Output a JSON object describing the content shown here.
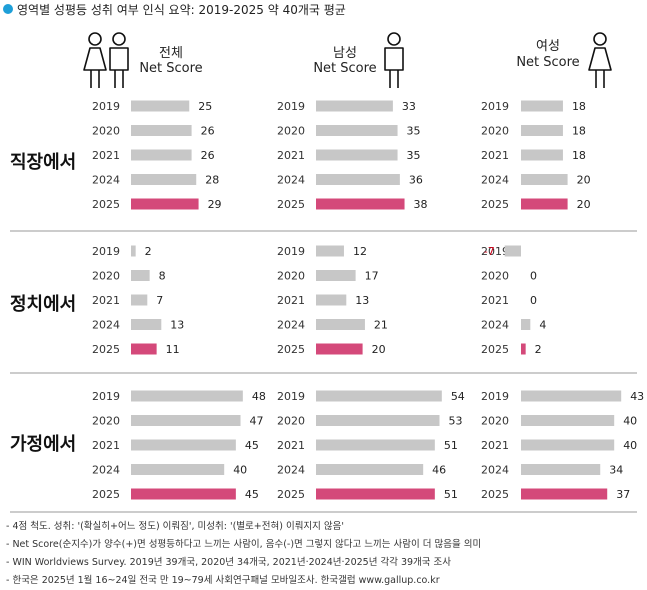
{
  "title": "영역별 성평등 성취 여부 인식 요약: 2019-2025 약 40개국 평균",
  "colors": {
    "bar": "#c7c7c7",
    "highlight": "#d4497a",
    "negative": "#d0021b",
    "dot": "#1e9fd8"
  },
  "icons": {
    "all": "man-woman-icon",
    "male": "man-icon",
    "female": "woman-icon"
  },
  "headers": [
    {
      "line1": "전체",
      "line2": "Net Score"
    },
    {
      "line1": "남성",
      "line2": "Net Score"
    },
    {
      "line1": "여성",
      "line2": "Net Score"
    }
  ],
  "chart_data": {
    "type": "bar",
    "orientation": "horizontal",
    "years": [
      "2019",
      "2020",
      "2021",
      "2024",
      "2025"
    ],
    "highlight_year": "2025",
    "domains": [
      {
        "label": "직장에서",
        "series": [
          {
            "name": "전체",
            "values": [
              25,
              26,
              26,
              28,
              29
            ]
          },
          {
            "name": "남성",
            "values": [
              33,
              35,
              35,
              36,
              38
            ]
          },
          {
            "name": "여성",
            "values": [
              18,
              18,
              18,
              20,
              20
            ]
          }
        ]
      },
      {
        "label": "정치에서",
        "series": [
          {
            "name": "전체",
            "values": [
              2,
              8,
              7,
              13,
              11
            ]
          },
          {
            "name": "남성",
            "values": [
              12,
              17,
              13,
              21,
              20
            ]
          },
          {
            "name": "여성",
            "values": [
              -7,
              0,
              0,
              4,
              2
            ]
          }
        ]
      },
      {
        "label": "가정에서",
        "series": [
          {
            "name": "전체",
            "values": [
              48,
              47,
              45,
              40,
              45
            ]
          },
          {
            "name": "남성",
            "values": [
              54,
              53,
              51,
              46,
              51
            ]
          },
          {
            "name": "여성",
            "values": [
              43,
              40,
              40,
              34,
              37
            ]
          }
        ]
      }
    ]
  },
  "footnotes": [
    "- 4점 척도. 성취: '(확실히+어느 정도) 이뤄짐', 미성취: '(별로+전혀) 이뤄지지 않음'",
    "- Net Score(순지수)가 양수(+)면 성평등하다고 느끼는 사람이, 음수(-)면 그렇지 않다고 느끼는 사람이 더 많음을 의미",
    "- WIN Worldviews Survey. 2019년 39개국, 2020년 34개국, 2021년·2024년·2025년 각각 39개국 조사",
    "- 한국은 2025년 1월 16~24일 전국 만 19~79세 사회연구패널 모바일조사. 한국갤럽 www.gallup.co.kr"
  ]
}
